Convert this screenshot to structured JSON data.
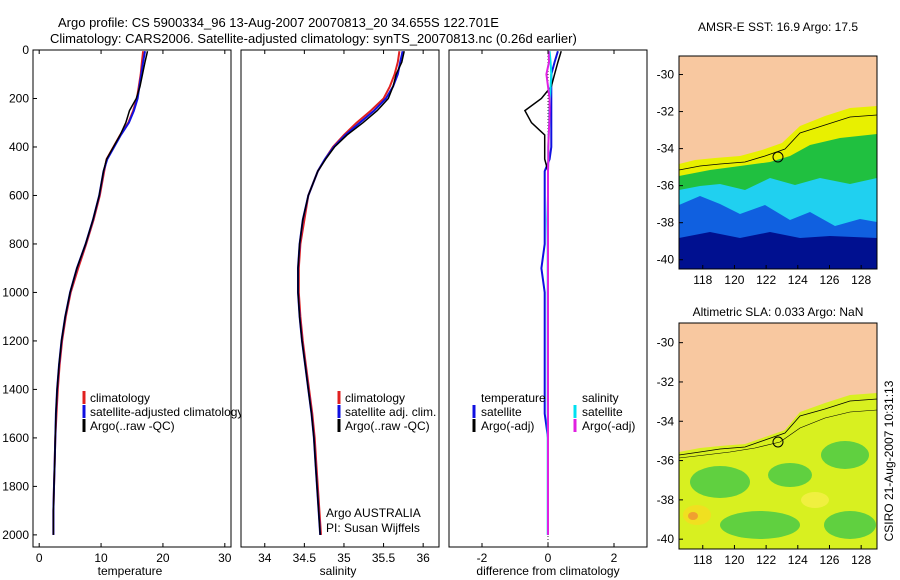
{
  "figure": {
    "title_line1": "Argo profile: CS 5900334_96 13-Aug-2007 20070813_20 34.655S 122.701E",
    "title_line2": "Climatology: CARS2006. Satellite-adjusted climatology: synTS_20070813.nc (0.26d earlier)",
    "footer": "CSIRO 21-Aug-2007 10:31:13",
    "colors": {
      "climatology": "#e02020",
      "satellite": "#1010e0",
      "argo": "#000000",
      "salinity_sat": "#00e0f0",
      "salinity_argo": "#e020e0",
      "land": "#f8c8a0"
    }
  },
  "chart_data": [
    {
      "type": "line",
      "xlabel": "temperature",
      "xlim": [
        -1,
        31
      ],
      "ylim": [
        0,
        2050
      ],
      "x_ticks": [
        "0",
        "10",
        "20",
        "30"
      ],
      "y_ticks": [
        "0",
        "200",
        "400",
        "600",
        "800",
        "1000",
        "1200",
        "1400",
        "1600",
        "1800",
        "2000"
      ],
      "depth": [
        5,
        50,
        100,
        150,
        200,
        250,
        300,
        350,
        400,
        450,
        500,
        600,
        700,
        800,
        900,
        1000,
        1100,
        1200,
        1300,
        1400,
        1500,
        1600,
        1700,
        1800,
        1900,
        2000
      ],
      "series": [
        {
          "name": "climatology",
          "values": [
            16.8,
            16.6,
            16.4,
            16.1,
            15.8,
            15.2,
            14.4,
            13.1,
            12,
            10.9,
            10.5,
            9.8,
            8.8,
            7.6,
            6.3,
            5.1,
            4.3,
            3.7,
            3.3,
            3,
            2.8,
            2.6,
            2.5,
            2.4,
            2.3,
            2.3
          ]
        },
        {
          "name": "satellite-adjusted climatology",
          "values": [
            17.1,
            16.8,
            16.5,
            16.2,
            15.9,
            15.3,
            14.5,
            13.2,
            12.1,
            11,
            10.4,
            9.7,
            8.7,
            7.5,
            6.1,
            5,
            4.2,
            3.6,
            3.2,
            2.9,
            2.7,
            2.6,
            2.5,
            2.4,
            2.3,
            2.3
          ]
        },
        {
          "name": "Argo(..raw -QC)",
          "values": [
            17.5,
            17.1,
            16.7,
            16.3,
            15.7,
            14.6,
            14,
            13.1,
            12,
            10.9,
            10.4,
            9.7,
            8.7,
            7.5,
            6.1,
            5,
            4.2,
            3.6,
            3.2,
            2.9,
            2.7,
            2.6,
            2.5,
            2.4,
            2.3,
            2.3
          ]
        }
      ],
      "legend": [
        "climatology",
        "satellite-adjusted climatology",
        "Argo(..raw -QC)"
      ]
    },
    {
      "type": "line",
      "xlabel": "salinity",
      "xlim": [
        33.7,
        36.2
      ],
      "ylim": [
        0,
        2050
      ],
      "x_ticks": [
        "34",
        "34.5",
        "35",
        "35.5",
        "36"
      ],
      "depth": [
        5,
        50,
        100,
        150,
        200,
        250,
        300,
        350,
        400,
        450,
        500,
        600,
        700,
        800,
        900,
        1000,
        1100,
        1200,
        1300,
        1400,
        1500,
        1600,
        1700,
        1800,
        1900,
        2000
      ],
      "series": [
        {
          "name": "climatology",
          "values": [
            35.7,
            35.68,
            35.64,
            35.58,
            35.5,
            35.34,
            35.16,
            35,
            34.86,
            34.76,
            34.67,
            34.55,
            34.5,
            34.45,
            34.43,
            34.43,
            34.45,
            34.48,
            34.52,
            34.56,
            34.6,
            34.63,
            34.65,
            34.67,
            34.69,
            34.71
          ]
        },
        {
          "name": "satellite adj. clim.",
          "values": [
            35.74,
            35.71,
            35.68,
            35.62,
            35.53,
            35.38,
            35.2,
            35.02,
            34.87,
            34.76,
            34.67,
            34.55,
            34.48,
            34.44,
            34.42,
            34.42,
            34.44,
            34.47,
            34.51,
            34.55,
            34.59,
            34.62,
            34.64,
            34.66,
            34.68,
            34.7
          ]
        },
        {
          "name": "Argo(..raw -QC)",
          "values": [
            35.76,
            35.73,
            35.66,
            35.62,
            35.56,
            35.42,
            35.24,
            35.04,
            34.88,
            34.77,
            34.67,
            34.55,
            34.48,
            34.44,
            34.42,
            34.42,
            34.44,
            34.47,
            34.51,
            34.55,
            34.59,
            34.62,
            34.64,
            34.66,
            34.68,
            34.7
          ]
        }
      ],
      "legend": [
        "climatology",
        "satellite adj. clim.",
        "Argo(..raw -QC)"
      ],
      "annotation": [
        "Argo AUSTRALIA",
        "PI: Susan Wijffels"
      ]
    },
    {
      "type": "line",
      "xlabel": "difference from climatology",
      "xlim": [
        -3,
        3
      ],
      "ylim": [
        0,
        2050
      ],
      "x_ticks": [
        "-2",
        "0",
        "2"
      ],
      "depth": [
        5,
        50,
        100,
        150,
        200,
        250,
        300,
        350,
        400,
        450,
        500,
        600,
        700,
        800,
        900,
        1000,
        1100,
        1200,
        1300,
        1400,
        1500,
        1600,
        1700,
        1800,
        1900,
        2000
      ],
      "series": [
        {
          "name": "temperature satellite",
          "values": [
            0.3,
            0.2,
            0.1,
            0.1,
            0.1,
            0.1,
            0.1,
            0.1,
            0.1,
            0.05,
            -0.1,
            -0.1,
            -0.1,
            -0.1,
            -0.2,
            -0.1,
            -0.1,
            -0.1,
            -0.1,
            -0.1,
            -0.1,
            0,
            0,
            0,
            0,
            0
          ]
        },
        {
          "name": "temperature Argo(-adj)",
          "values": [
            0.4,
            0.3,
            0.2,
            0.1,
            -0.2,
            -0.7,
            -0.5,
            -0.1,
            -0.1,
            -0.1,
            0,
            0,
            0,
            0,
            0,
            0,
            0,
            0,
            0,
            0,
            0,
            0,
            0,
            0,
            0,
            0
          ]
        },
        {
          "name": "salinity satellite",
          "values": [
            0.05,
            0.08,
            0.1,
            0.08,
            0.06,
            0.04,
            0.04,
            0.02,
            0.01,
            0.01,
            0,
            0,
            -0.02,
            -0.01,
            -0.01,
            -0.01,
            -0.01,
            -0.01,
            -0.01,
            -0.01,
            -0.01,
            -0.01,
            -0.01,
            -0.01,
            -0.01,
            -0.01
          ]
        },
        {
          "name": "salinity Argo(-adj)",
          "values": [
            0.02,
            0.03,
            -0.05,
            0,
            0.05,
            0.05,
            0.04,
            0.02,
            0.01,
            0.01,
            0,
            0,
            0,
            0,
            0,
            0,
            0,
            0,
            0,
            0,
            0,
            0,
            0,
            0,
            0,
            0
          ]
        }
      ],
      "legend": {
        "temperature": "temperature",
        "salinity": "salinity",
        "satellite": "satellite",
        "argo_adj": "Argo(-adj)"
      }
    },
    {
      "type": "heatmap",
      "title": "AMSR-E SST: 16.9 Argo: 17.5",
      "xlim": [
        116.5,
        129
      ],
      "ylim": [
        -40.5,
        -29
      ],
      "x_ticks": [
        "118",
        "120",
        "122",
        "124",
        "126",
        "128"
      ],
      "y_ticks": [
        "-30",
        "-32",
        "-34",
        "-36",
        "-38",
        "-40"
      ],
      "profile_location": {
        "lon": 122.701,
        "lat": -34.655
      }
    },
    {
      "type": "heatmap",
      "title": "Altimetric SLA: 0.033 Argo: NaN",
      "xlim": [
        116.5,
        129
      ],
      "ylim": [
        -40.5,
        -29
      ],
      "x_ticks": [
        "118",
        "120",
        "122",
        "124",
        "126",
        "128"
      ],
      "y_ticks": [
        "-30",
        "-32",
        "-34",
        "-36",
        "-38",
        "-40"
      ],
      "profile_location": {
        "lon": 122.701,
        "lat": -34.655
      }
    }
  ]
}
